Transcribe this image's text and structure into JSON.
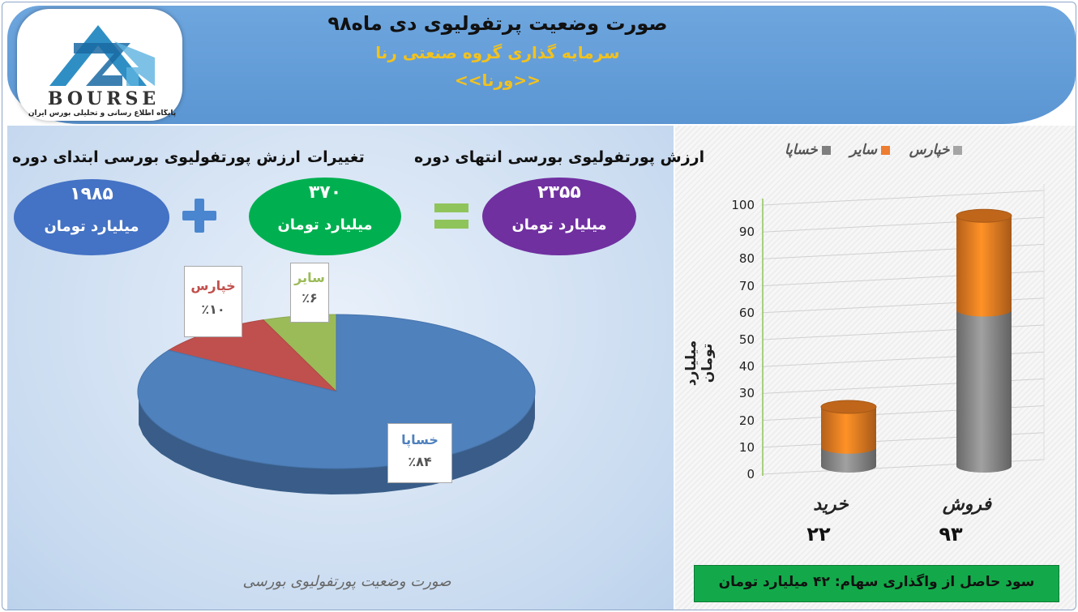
{
  "header": {
    "title": "صورت وضعیت پرتفولیوی دی ماه۹۸",
    "subtitle": "سرمایه گذاری گروه صنعتی رنا",
    "ticker": "<<ورنا>>"
  },
  "logo": {
    "word": "BOURSE",
    "tagline": "پایگاه اطلاع رسانی و تحلیلی بورس ایران"
  },
  "summary": {
    "start": {
      "label": "ارزش پورتفولیوی بورسی ابتدای دوره",
      "value": "۱۹۸۵",
      "unit": "میلیارد تومان",
      "color": "#4472c4"
    },
    "change": {
      "label": "تغییرات",
      "value": "۳۷۰",
      "unit": "میلیارد تومان",
      "color": "#00b050"
    },
    "end": {
      "label": "ارزش پورتفولیوی بورسی انتهای دوره",
      "value": "۲۳۵۵",
      "unit": "میلیارد تومان",
      "color": "#7030a0"
    }
  },
  "pie_caption": "صورت وضعیت پورتفولیوی بورسی",
  "profit": "سود حاصل از واگذاری سهام: ۴۲ میلیارد تومان",
  "chart_data": [
    {
      "type": "pie",
      "title": "صورت وضعیت پورتفولیوی بورسی",
      "slices": [
        {
          "name": "خساپا",
          "value": 84,
          "label": "٪۸۴",
          "color": "#4f81bd"
        },
        {
          "name": "خپارس",
          "value": 10,
          "label": "٪۱۰",
          "color": "#c0504d"
        },
        {
          "name": "سایر",
          "value": 6,
          "label": "٪۶",
          "color": "#9bbb59"
        }
      ]
    },
    {
      "type": "bar",
      "stacked": true,
      "ylabel": "میلیارد تومان",
      "ylim": [
        0,
        100
      ],
      "yticks": [
        0,
        10,
        20,
        30,
        40,
        50,
        60,
        70,
        80,
        90,
        100
      ],
      "grid": true,
      "legend_position": "top",
      "legend": [
        {
          "name": "خساپا",
          "color": "#7f7f7f"
        },
        {
          "name": "سایر",
          "color": "#ed7d31"
        },
        {
          "name": "خپارس",
          "color": "#a5a5a5"
        }
      ],
      "categories": [
        {
          "name": "خرید",
          "total_label": "۲۲"
        },
        {
          "name": "فروش",
          "total_label": "۹۳"
        }
      ],
      "series": [
        {
          "name": "خساپا",
          "color": "#8c8c8c",
          "values": [
            7,
            58
          ]
        },
        {
          "name": "سایر",
          "color": "#ef7f22",
          "values": [
            15,
            35
          ]
        }
      ]
    }
  ]
}
